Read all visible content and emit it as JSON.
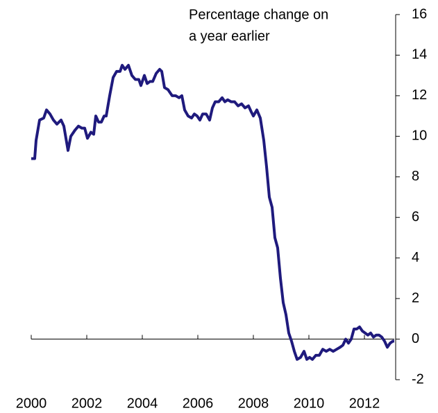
{
  "chart_data": {
    "type": "line",
    "ylabel": [
      "Percentage change on",
      "a year earlier"
    ],
    "x": [
      2000.0,
      2000.125,
      2000.175,
      2000.3,
      2000.45,
      2000.55,
      2000.675,
      2000.8,
      2000.925,
      2001.075,
      2001.175,
      2001.325,
      2001.425,
      2001.575,
      2001.7,
      2001.825,
      2001.925,
      2002.025,
      2002.15,
      2002.25,
      2002.325,
      2002.425,
      2002.525,
      2002.625,
      2002.7,
      2002.825,
      2002.95,
      2003.075,
      2003.2,
      2003.275,
      2003.375,
      2003.5,
      2003.625,
      2003.75,
      2003.875,
      2003.95,
      2004.075,
      2004.175,
      2004.275,
      2004.375,
      2004.5,
      2004.625,
      2004.7,
      2004.8,
      2004.925,
      2005.075,
      2005.2,
      2005.325,
      2005.425,
      2005.525,
      2005.65,
      2005.775,
      2005.875,
      2005.975,
      2006.075,
      2006.175,
      2006.3,
      2006.425,
      2006.525,
      2006.625,
      2006.75,
      2006.875,
      2006.975,
      2007.075,
      2007.2,
      2007.325,
      2007.45,
      2007.575,
      2007.7,
      2007.825,
      2007.925,
      2008.0,
      2008.125,
      2008.25,
      2008.375,
      2008.475,
      2008.575,
      2008.675,
      2008.775,
      2008.875,
      2008.975,
      2009.075,
      2009.175,
      2009.275,
      2009.375,
      2009.475,
      2009.575,
      2009.7,
      2009.825,
      2009.925,
      2010.025,
      2010.125,
      2010.25,
      2010.375,
      2010.5,
      2010.625,
      2010.75,
      2010.875,
      2011.0,
      2011.125,
      2011.225,
      2011.325,
      2011.425,
      2011.525,
      2011.625,
      2011.725,
      2011.825,
      2011.925,
      2012.025,
      2012.125,
      2012.225,
      2012.325,
      2012.425,
      2012.525,
      2012.625,
      2012.725,
      2012.825,
      2012.925,
      2013.025,
      2013.075
    ],
    "series": [
      {
        "color": "#1f1a7d",
        "values": [
          8.9,
          8.9,
          9.8,
          10.8,
          10.9,
          11.3,
          11.1,
          10.8,
          10.6,
          10.8,
          10.5,
          9.3,
          10.0,
          10.3,
          10.5,
          10.4,
          10.4,
          9.9,
          10.2,
          10.1,
          11.0,
          10.7,
          10.7,
          11.0,
          11.0,
          12.0,
          12.9,
          13.2,
          13.2,
          13.5,
          13.3,
          13.5,
          13.0,
          12.8,
          12.8,
          12.5,
          13.0,
          12.6,
          12.7,
          12.7,
          13.1,
          13.3,
          13.2,
          12.4,
          12.3,
          12.0,
          12.0,
          11.9,
          12.0,
          11.3,
          11.0,
          10.9,
          11.1,
          11.0,
          10.8,
          11.1,
          11.1,
          10.8,
          11.4,
          11.7,
          11.7,
          11.9,
          11.7,
          11.8,
          11.7,
          11.7,
          11.5,
          11.6,
          11.4,
          11.5,
          11.2,
          11.0,
          11.3,
          10.9,
          9.8,
          8.5,
          7.0,
          6.5,
          5.0,
          4.5,
          3.0,
          1.8,
          1.2,
          0.3,
          -0.1,
          -0.6,
          -1.0,
          -0.9,
          -0.6,
          -1.0,
          -0.9,
          -1.0,
          -0.8,
          -0.8,
          -0.5,
          -0.6,
          -0.5,
          -0.6,
          -0.5,
          -0.4,
          -0.3,
          0.0,
          -0.2,
          0.0,
          0.5,
          0.5,
          0.6,
          0.4,
          0.3,
          0.2,
          0.3,
          0.1,
          0.2,
          0.2,
          0.1,
          -0.1,
          -0.4,
          -0.2,
          -0.1,
          -0.1
        ]
      }
    ],
    "xlim": [
      2000,
      2013.075
    ],
    "xticks": [
      2000,
      2002,
      2004,
      2006,
      2008,
      2010,
      2012
    ],
    "ylim": [
      -2,
      16
    ],
    "yticks": [
      -2,
      0,
      2,
      4,
      6,
      8,
      10,
      12,
      14,
      16
    ]
  }
}
